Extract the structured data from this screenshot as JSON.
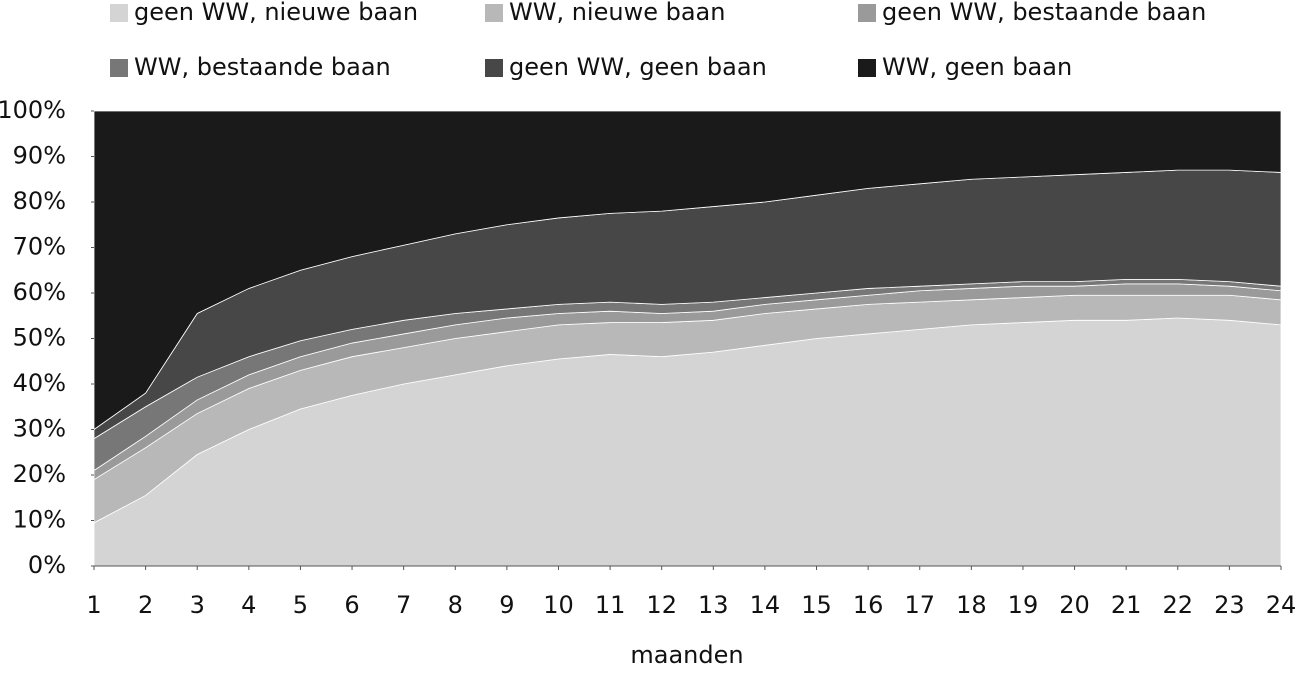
{
  "chart_data": {
    "type": "stacked-area",
    "x_label": "maanden",
    "x": [
      1,
      2,
      3,
      4,
      5,
      6,
      7,
      8,
      9,
      10,
      11,
      12,
      13,
      14,
      15,
      16,
      17,
      18,
      19,
      20,
      21,
      22,
      23,
      24
    ],
    "xlim": [
      1,
      24
    ],
    "xticks": [
      1,
      2,
      3,
      4,
      5,
      6,
      7,
      8,
      9,
      10,
      11,
      12,
      13,
      14,
      15,
      16,
      17,
      18,
      19,
      20,
      21,
      22,
      23,
      24
    ],
    "ylim": [
      0,
      100
    ],
    "yticks": [
      {
        "value": 0,
        "label": "0%"
      },
      {
        "value": 10,
        "label": "10%"
      },
      {
        "value": 20,
        "label": "20%"
      },
      {
        "value": 30,
        "label": "30%"
      },
      {
        "value": 40,
        "label": "40%"
      },
      {
        "value": 50,
        "label": "50%"
      },
      {
        "value": 60,
        "label": "60%"
      },
      {
        "value": 70,
        "label": "70%"
      },
      {
        "value": 80,
        "label": "80%"
      },
      {
        "value": 90,
        "label": "90%"
      },
      {
        "value": 100,
        "label": "100%"
      }
    ],
    "series": [
      {
        "name": "geen WW, nieuwe baan",
        "color": "#d4d4d4",
        "values": [
          9.5,
          15.5,
          24.5,
          30,
          34.5,
          37.5,
          40,
          42,
          44,
          45.5,
          46.5,
          46,
          47,
          48.5,
          50,
          51,
          52,
          53,
          53.5,
          54,
          54,
          54.5,
          54,
          53
        ]
      },
      {
        "name": "WW, nieuwe baan",
        "color": "#b8b8b8",
        "values": [
          9.5,
          10.5,
          9,
          9,
          8.5,
          8.5,
          8,
          8,
          7.5,
          7.5,
          7,
          7.5,
          7,
          7,
          6.5,
          6.5,
          6,
          5.5,
          5.5,
          5.5,
          5.5,
          5,
          5.5,
          5.5
        ]
      },
      {
        "name": "geen WW, bestaande baan",
        "color": "#9a9a9a",
        "values": [
          2,
          2.5,
          3,
          3,
          3,
          3,
          3,
          3,
          3,
          2.5,
          2.5,
          2,
          2,
          2,
          2,
          2,
          2.5,
          2.5,
          2.5,
          2,
          2.5,
          2.5,
          2,
          2
        ]
      },
      {
        "name": "WW, bestaande baan",
        "color": "#777777",
        "values": [
          7,
          6.5,
          5,
          4,
          3.5,
          3,
          3,
          2.5,
          2,
          2,
          2,
          2,
          2,
          1.5,
          1.5,
          1.5,
          1,
          1,
          1,
          1,
          1,
          1,
          1,
          1
        ]
      },
      {
        "name": "geen WW, geen baan",
        "color": "#474747",
        "values": [
          2,
          3,
          14,
          15,
          15.5,
          16,
          16.5,
          17.5,
          18.5,
          19,
          19.5,
          20.5,
          21,
          21,
          21.5,
          22,
          22.5,
          23,
          23,
          23.5,
          23.5,
          24,
          24.5,
          25
        ]
      },
      {
        "name": "WW, geen baan",
        "color": "#1a1a1a",
        "values": [
          70,
          62,
          44.5,
          39,
          35,
          32,
          29.5,
          27,
          25,
          23.5,
          22.5,
          22,
          21,
          20,
          18.5,
          17,
          16,
          15,
          14.5,
          14,
          13.5,
          13,
          13,
          13.5
        ]
      }
    ]
  }
}
